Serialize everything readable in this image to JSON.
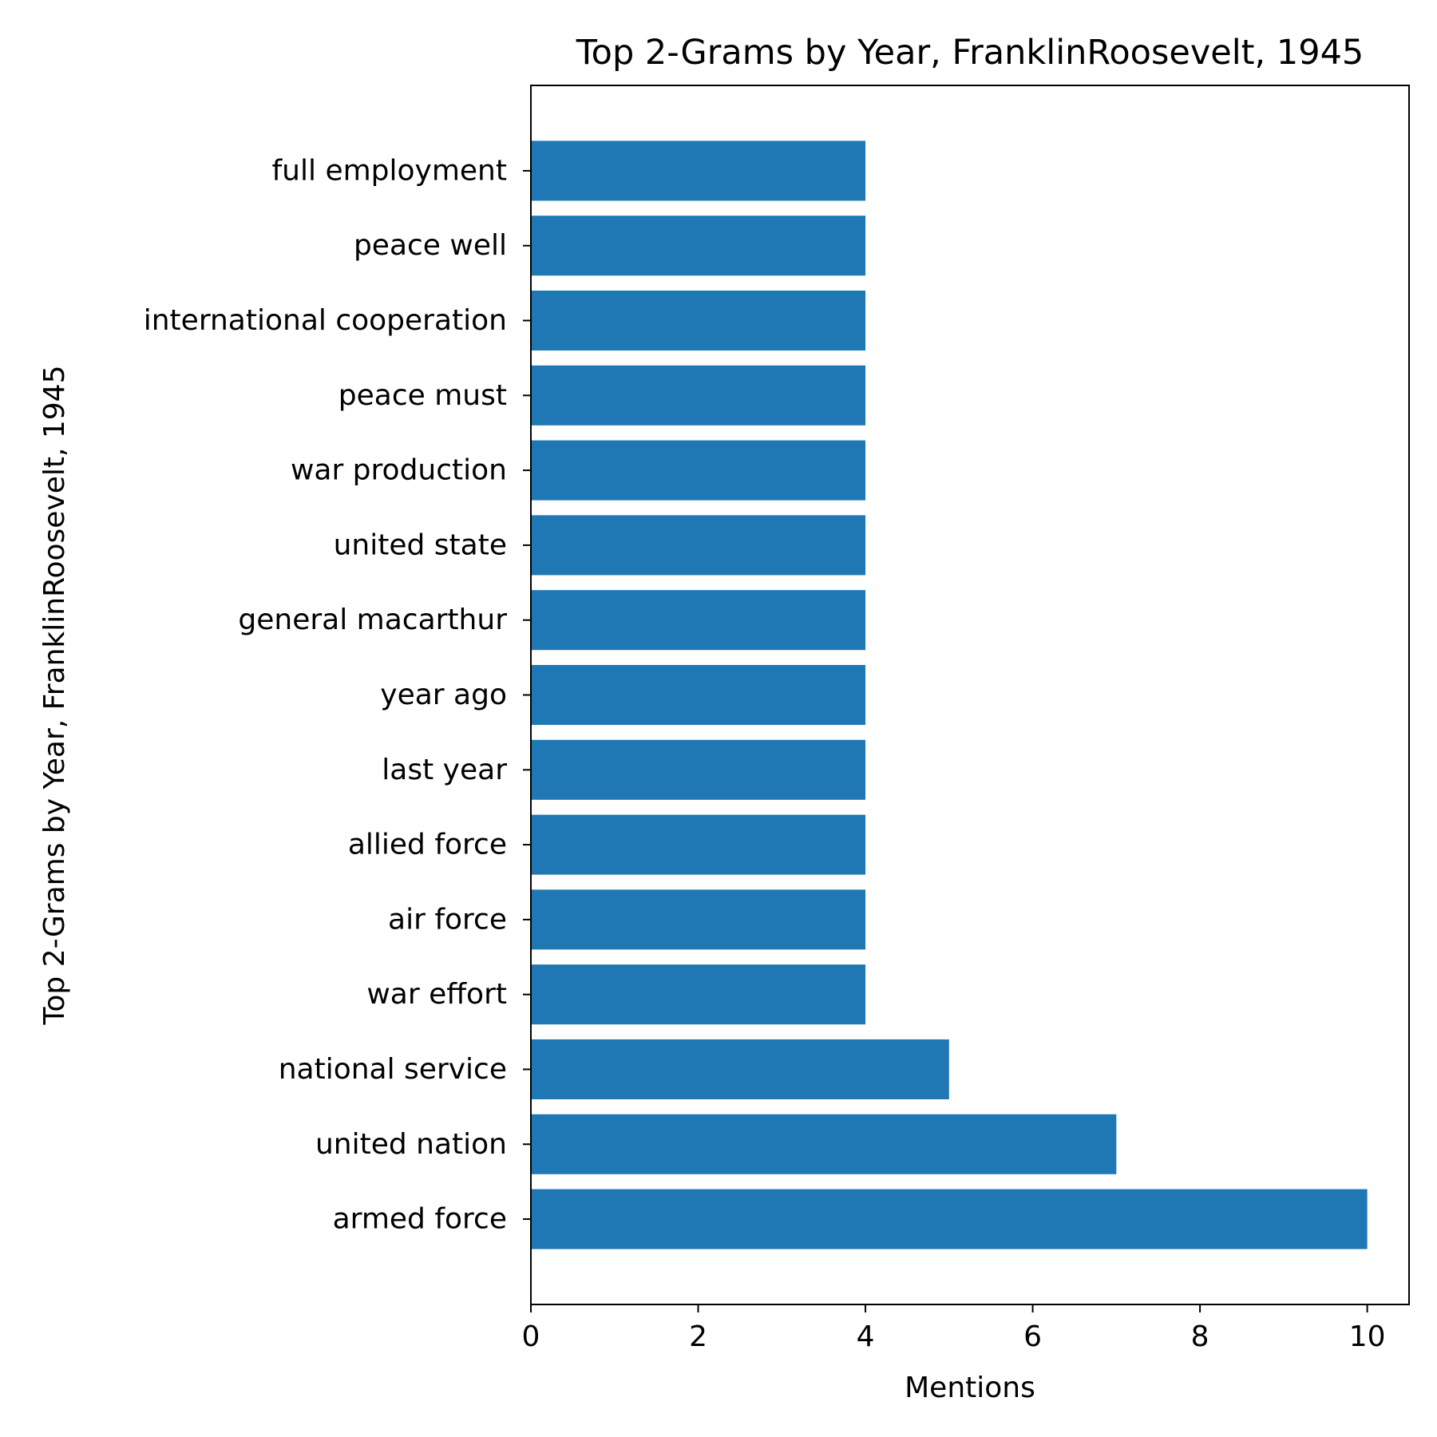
{
  "chart_data": {
    "type": "bar",
    "orientation": "horizontal",
    "title": "Top 2-Grams by Year, FranklinRoosevelt, 1945",
    "xlabel": "Mentions",
    "ylabel": "Top 2-Grams by Year, FranklinRoosevelt, 1945",
    "categories": [
      "armed force",
      "united nation",
      "national service",
      "war effort",
      "air force",
      "allied force",
      "last year",
      "year ago",
      "general macarthur",
      "united state",
      "war production",
      "peace must",
      "international cooperation",
      "peace well",
      "full employment"
    ],
    "values": [
      10,
      7,
      5,
      4,
      4,
      4,
      4,
      4,
      4,
      4,
      4,
      4,
      4,
      4,
      4
    ],
    "xlim": [
      0,
      10.5
    ],
    "xticks": [
      0,
      2,
      4,
      6,
      8,
      10
    ],
    "xtick_labels": [
      "0",
      "2",
      "4",
      "6",
      "8",
      "10"
    ],
    "grid": false,
    "bar_color": "#1f77b4"
  }
}
